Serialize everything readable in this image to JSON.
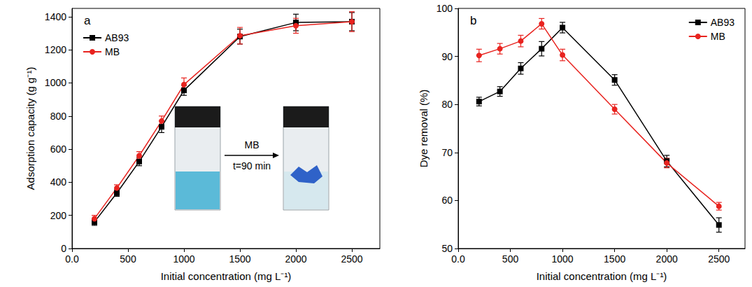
{
  "chart_data": [
    {
      "type": "line",
      "title": "a",
      "x_label": "Initial concentration (mg L⁻¹)",
      "y_label": "Adsorption capacity (g g⁻¹)",
      "x": [
        200,
        400,
        600,
        800,
        1000,
        1500,
        2000,
        2500
      ],
      "series": [
        {
          "name": "AB93",
          "color": "#000000",
          "marker": "square",
          "values": [
            160,
            335,
            525,
            735,
            955,
            1280,
            1365,
            1370
          ],
          "errors": [
            20,
            20,
            25,
            35,
            30,
            45,
            50,
            55
          ]
        },
        {
          "name": "MB",
          "color": "#e8231f",
          "marker": "circle",
          "values": [
            180,
            365,
            560,
            770,
            990,
            1285,
            1345,
            1370
          ],
          "errors": [
            20,
            20,
            25,
            30,
            40,
            50,
            45,
            60
          ]
        }
      ],
      "xlim": [
        0,
        2750
      ],
      "xticks": [
        {
          "value": 0,
          "label": "0.0"
        },
        500,
        1000,
        1500,
        2000,
        2500
      ],
      "ylim": [
        0,
        1450
      ],
      "yticks": [
        0,
        200,
        400,
        600,
        800,
        1000,
        1200,
        1400
      ],
      "grid": false,
      "legend": "upper left",
      "annotations": [
        "MB",
        "t=90 min"
      ]
    },
    {
      "type": "line",
      "title": "b",
      "x_label": "Initial concentration (mg L⁻¹)",
      "y_label": "Dye removal (%)",
      "x": [
        200,
        400,
        600,
        800,
        1000,
        1500,
        2000,
        2500
      ],
      "series": [
        {
          "name": "AB93",
          "color": "#000000",
          "marker": "square",
          "values": [
            80.6,
            82.7,
            87.5,
            91.6,
            96.0,
            85.1,
            68.2,
            54.9
          ],
          "errors": [
            0.9,
            1.0,
            1.2,
            1.5,
            1.1,
            1.1,
            1.2,
            1.5
          ]
        },
        {
          "name": "MB",
          "color": "#e8231f",
          "marker": "circle",
          "values": [
            90.2,
            91.6,
            93.2,
            96.8,
            90.3,
            79.0,
            67.8,
            58.8
          ],
          "errors": [
            1.3,
            1.1,
            1.2,
            1.1,
            1.2,
            1.0,
            1.0,
            0.8
          ]
        }
      ],
      "xlim": [
        0,
        2750
      ],
      "xticks": [
        {
          "value": 0,
          "label": "0.0"
        },
        500,
        1000,
        1500,
        2000,
        2500
      ],
      "ylim": [
        50,
        100
      ],
      "yticks": [
        50,
        60,
        70,
        80,
        90,
        100
      ],
      "grid": false,
      "legend": "upper right"
    }
  ]
}
